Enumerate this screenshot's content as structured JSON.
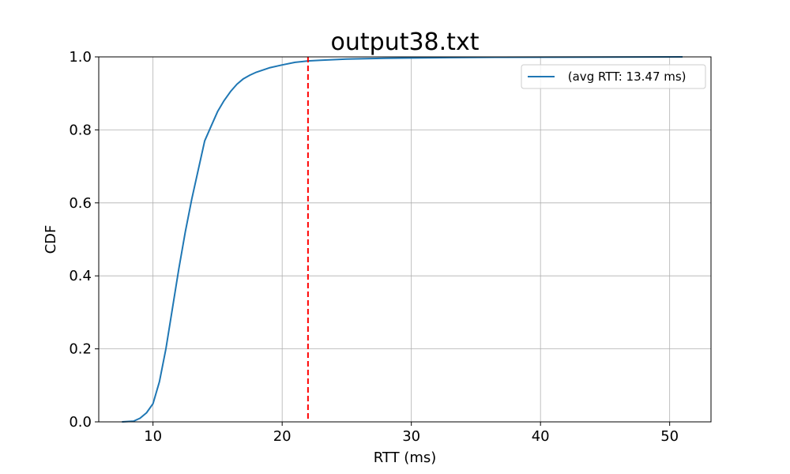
{
  "chart_data": {
    "type": "line",
    "title": "output38.txt",
    "xlabel": "RTT (ms)",
    "ylabel": "CDF",
    "xlim": [
      5.8,
      53.2
    ],
    "ylim": [
      0.0,
      1.0
    ],
    "xticks": [
      10,
      20,
      30,
      40,
      50
    ],
    "xtick_labels": [
      "10",
      "20",
      "30",
      "40",
      "50"
    ],
    "yticks": [
      0.0,
      0.2,
      0.4,
      0.6,
      0.8,
      1.0
    ],
    "ytick_labels": [
      "0.0",
      "0.2",
      "0.4",
      "0.6",
      "0.8",
      "1.0"
    ],
    "grid": true,
    "legend_position": "top-right",
    "series": [
      {
        "name": " (avg RTT: 13.47 ms)",
        "color": "#1f77b4",
        "x": [
          7.6,
          8.5,
          9.0,
          9.5,
          10.0,
          10.5,
          11.0,
          11.5,
          12.0,
          12.5,
          13.0,
          13.5,
          14.0,
          14.5,
          15.0,
          15.5,
          16.0,
          16.5,
          17.0,
          17.5,
          18.0,
          19.0,
          20.0,
          21.0,
          22.0,
          23.0,
          25.0,
          28.0,
          30.0,
          33.0,
          36.5,
          51.0
        ],
        "y": [
          0.0,
          0.002,
          0.01,
          0.025,
          0.05,
          0.11,
          0.2,
          0.31,
          0.42,
          0.52,
          0.61,
          0.69,
          0.77,
          0.81,
          0.85,
          0.88,
          0.905,
          0.925,
          0.94,
          0.95,
          0.958,
          0.97,
          0.978,
          0.985,
          0.989,
          0.991,
          0.994,
          0.996,
          0.997,
          0.998,
          0.999,
          1.0
        ]
      }
    ],
    "reference_line": {
      "x": 22.0,
      "color": "#ff0000",
      "style": "dashed"
    }
  }
}
